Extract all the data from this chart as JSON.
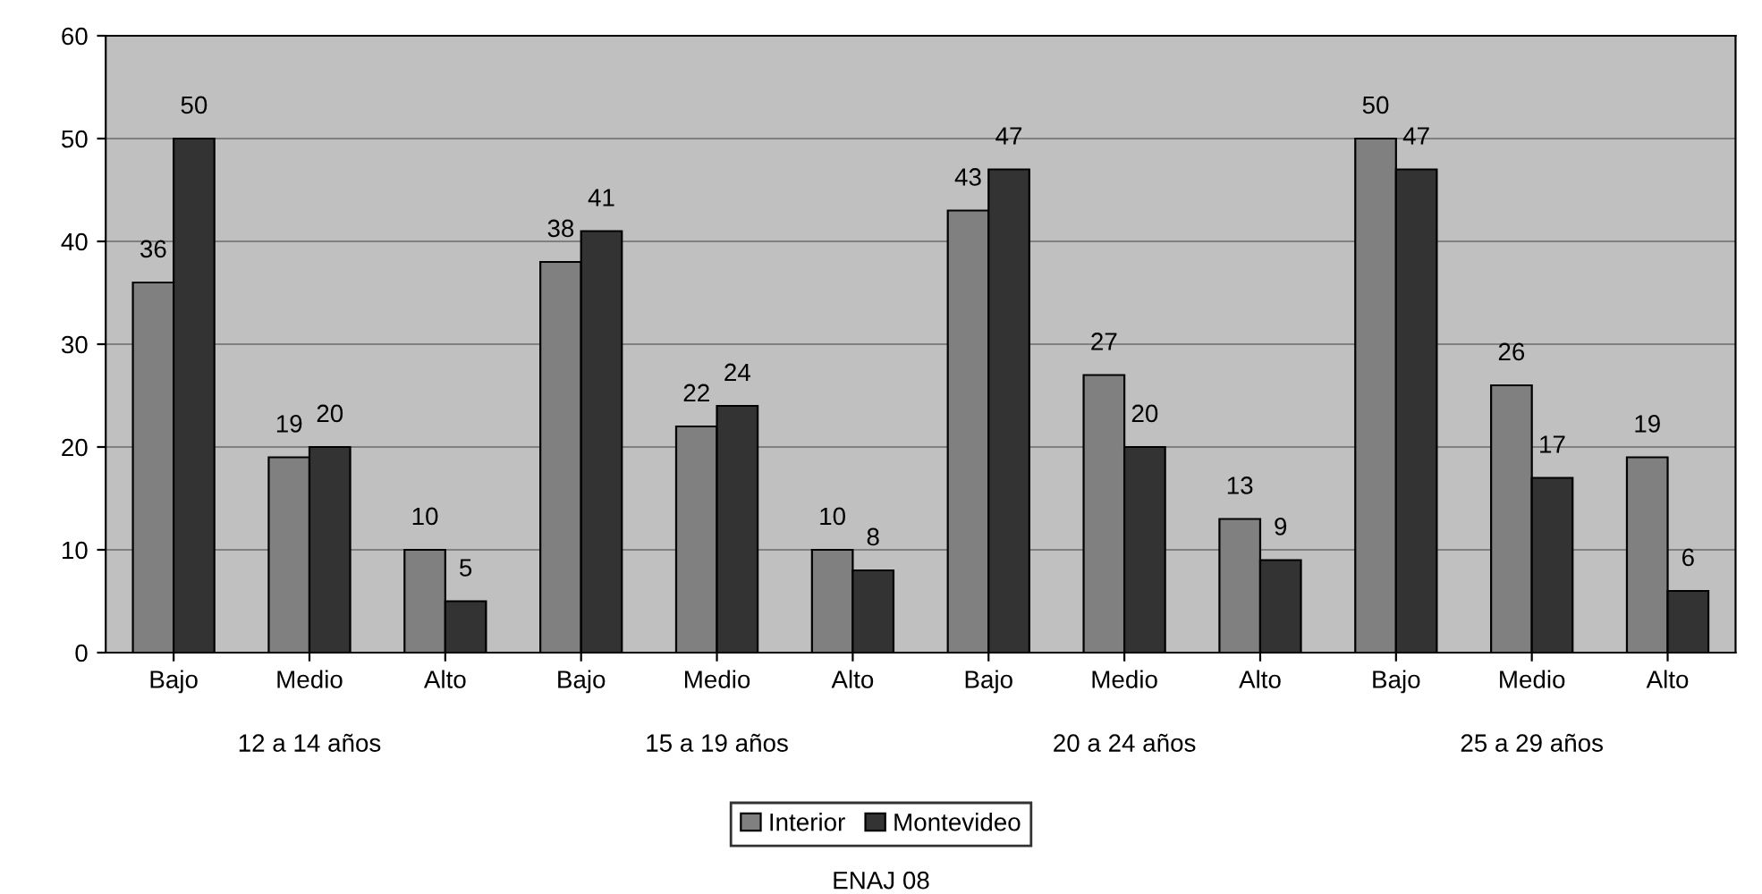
{
  "chart_data": {
    "type": "bar",
    "categories": [
      "Bajo",
      "Medio",
      "Alto",
      "Bajo",
      "Medio",
      "Alto",
      "Bajo",
      "Medio",
      "Alto",
      "Bajo",
      "Medio",
      "Alto"
    ],
    "series": [
      {
        "name": "Interior",
        "color": "#808080",
        "values": [
          36,
          19,
          10,
          38,
          22,
          10,
          43,
          27,
          13,
          50,
          26,
          19
        ]
      },
      {
        "name": "Montevideo",
        "color": "#333333",
        "values": [
          50,
          20,
          5,
          41,
          24,
          8,
          47,
          20,
          9,
          47,
          17,
          6
        ]
      }
    ],
    "ylim": [
      0,
      60
    ],
    "yticks": [
      0,
      10,
      20,
      30,
      40,
      50,
      60
    ],
    "grid": "y",
    "legend": "bottom",
    "data_labels": true,
    "annotations": [
      "12 a 14 años",
      "15 a 19 años",
      "20 a 24 años",
      "25 a 29 años",
      "ENAJ 08"
    ]
  }
}
